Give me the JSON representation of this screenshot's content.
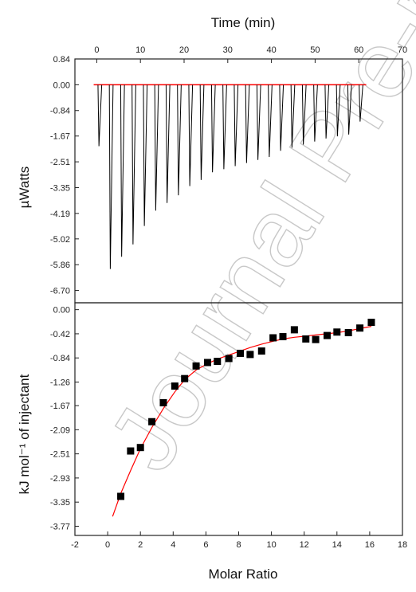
{
  "watermark": "Journal Pre-proof",
  "chart_data": [
    {
      "type": "line",
      "panel": "top",
      "title": "",
      "xlabel_top": "Time (min)",
      "ylabel": "µWatts",
      "xlim": [
        -5,
        70
      ],
      "ylim": [
        -7.1,
        0.84
      ],
      "x_ticks": [
        "0",
        "10",
        "20",
        "30",
        "40",
        "50",
        "60",
        "70"
      ],
      "y_ticks": [
        "0.84",
        "0.00",
        "-0.84",
        "-1.67",
        "-2.51",
        "-3.35",
        "-4.19",
        "-5.02",
        "-5.86",
        "-6.70"
      ],
      "baseline_color": "#ff0000",
      "trace_color": "#000000",
      "injection_peaks": {
        "time_min": [
          0.5,
          3.1,
          5.7,
          8.3,
          10.9,
          13.5,
          16.1,
          18.7,
          21.3,
          23.9,
          26.5,
          29.1,
          31.7,
          34.3,
          36.9,
          39.5,
          42.1,
          44.7,
          47.3,
          49.9,
          52.5,
          55.1,
          57.7,
          60.3
        ],
        "peak_uW": [
          -2.0,
          -6.0,
          -5.6,
          -5.2,
          -4.6,
          -4.1,
          -3.85,
          -3.6,
          -3.3,
          -3.1,
          -2.85,
          -2.75,
          -2.65,
          -2.55,
          -2.45,
          -2.35,
          -2.15,
          -2.05,
          -1.95,
          -1.85,
          -1.75,
          -1.68,
          -1.62,
          -1.2
        ]
      }
    },
    {
      "type": "scatter",
      "panel": "bottom",
      "title": "",
      "xlabel": "Molar Ratio",
      "ylabel": "kJ mol⁻¹ of injectant",
      "xlim": [
        -2,
        18
      ],
      "ylim": [
        -3.93,
        0.12
      ],
      "x_ticks": [
        "-2",
        "0",
        "2",
        "4",
        "6",
        "8",
        "10",
        "12",
        "14",
        "16",
        "18"
      ],
      "y_ticks": [
        "0.00",
        "-0.42",
        "-0.84",
        "-1.26",
        "-1.67",
        "-2.09",
        "-2.51",
        "-2.93",
        "-3.35",
        "-3.77"
      ],
      "marker_color": "#000000",
      "fit_color": "#ff0000",
      "points": {
        "x": [
          0.8,
          1.4,
          2.0,
          2.7,
          3.4,
          4.1,
          4.7,
          5.4,
          6.1,
          6.7,
          7.4,
          8.1,
          8.7,
          9.4,
          10.1,
          10.7,
          11.4,
          12.1,
          12.7,
          13.4,
          14.0,
          14.7,
          15.4,
          16.1
        ],
        "y": [
          -3.25,
          -2.46,
          -2.4,
          -1.95,
          -1.62,
          -1.33,
          -1.2,
          -0.98,
          -0.92,
          -0.9,
          -0.85,
          -0.76,
          -0.78,
          -0.72,
          -0.49,
          -0.47,
          -0.35,
          -0.51,
          -0.52,
          -0.45,
          -0.39,
          -0.4,
          -0.32,
          -0.22
        ]
      },
      "fit": {
        "x": [
          0.3,
          0.8,
          1.4,
          2.0,
          2.7,
          3.4,
          4.1,
          4.7,
          5.4,
          6.1,
          6.7,
          7.4,
          8.1,
          8.7,
          9.4,
          10.1,
          10.7,
          11.4,
          12.1,
          12.7,
          13.4,
          14.0,
          14.7,
          15.4,
          16.1
        ],
        "y": [
          -3.6,
          -3.2,
          -2.8,
          -2.42,
          -2.05,
          -1.72,
          -1.43,
          -1.22,
          -1.05,
          -0.94,
          -0.86,
          -0.79,
          -0.72,
          -0.66,
          -0.6,
          -0.55,
          -0.51,
          -0.48,
          -0.46,
          -0.44,
          -0.42,
          -0.4,
          -0.37,
          -0.33,
          -0.29
        ]
      }
    }
  ]
}
